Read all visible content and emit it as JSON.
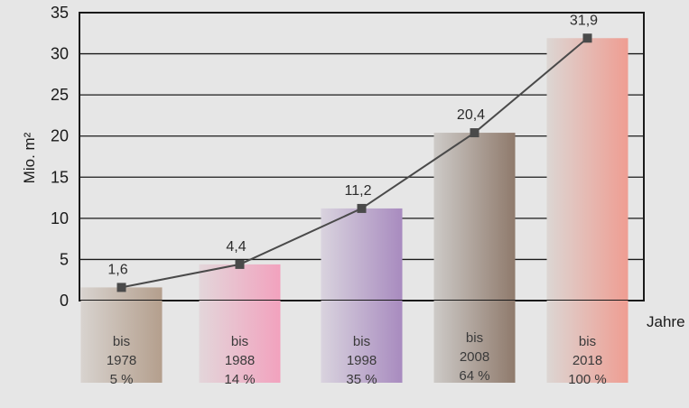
{
  "chart_data": {
    "type": "bar",
    "categories": [
      "bis 1978",
      "bis 1988",
      "bis 1998",
      "bis 2008",
      "bis 2018"
    ],
    "category_lines": [
      [
        "bis",
        "1978",
        "5 %"
      ],
      [
        "bis",
        "1988",
        "14 %"
      ],
      [
        "bis",
        "1998",
        "35 %"
      ],
      [
        "bis",
        "2008",
        "64 %"
      ],
      [
        "bis",
        "2018",
        "100 %"
      ]
    ],
    "values": [
      1.6,
      4.4,
      11.2,
      20.4,
      31.9
    ],
    "value_labels": [
      "1,6",
      "4,4",
      "11,2",
      "20,4",
      "31,9"
    ],
    "line_overlay": true,
    "ylabel": "Mio. m²",
    "xlabel": "Jahre",
    "ylim": [
      0,
      35
    ],
    "yticks": [
      0,
      5,
      10,
      15,
      20,
      25,
      30,
      35
    ],
    "grid": true,
    "bar_colors": [
      [
        "#d8d3cf",
        "#b49f8d"
      ],
      [
        "#e3d6da",
        "#f2a2be"
      ],
      [
        "#d9d3de",
        "#a88bbf"
      ],
      [
        "#cdcac7",
        "#8f7a6c"
      ],
      [
        "#dcd6d3",
        "#ef9d92"
      ]
    ],
    "line_color": "#4a4a4a"
  }
}
